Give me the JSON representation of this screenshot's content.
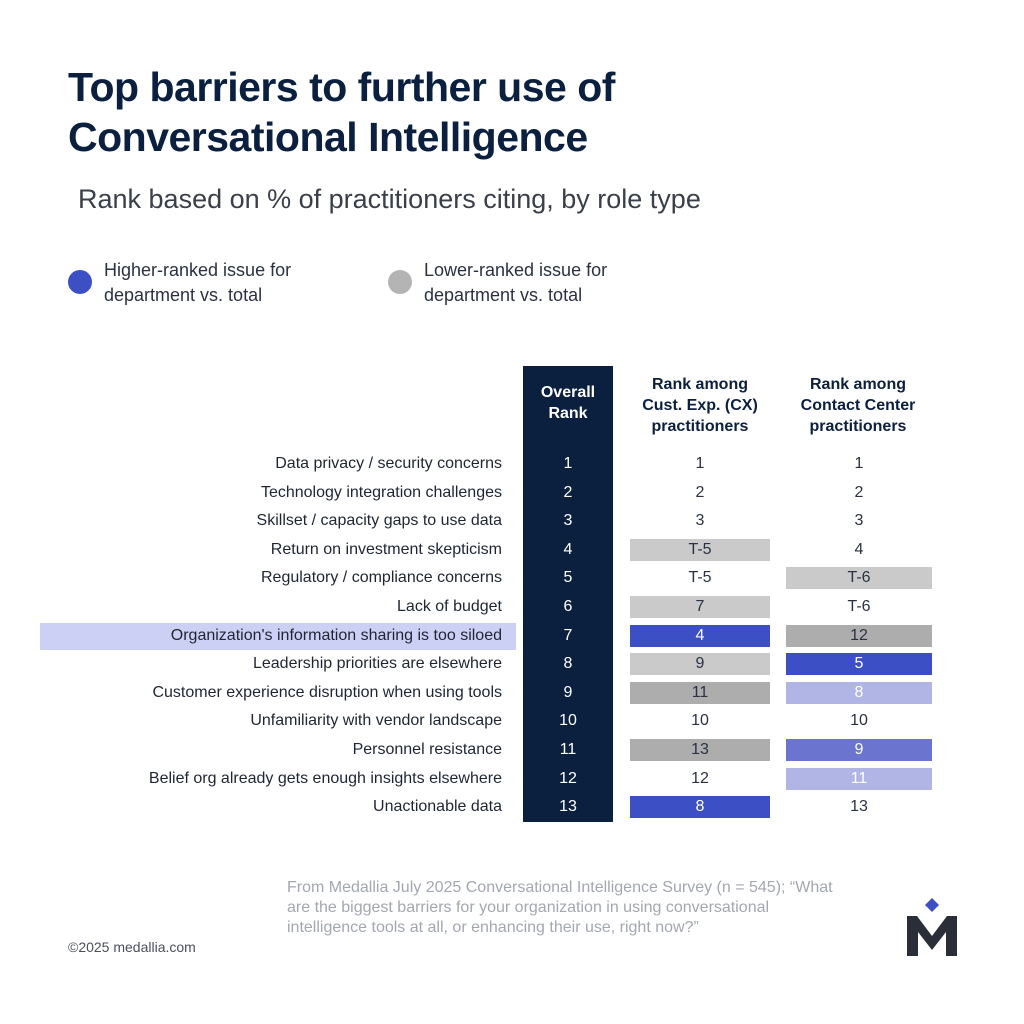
{
  "header": {
    "title_line1": "Top barriers to further use of",
    "title_line2": "Conversational Intelligence",
    "subtitle": "Rank based on % of practitioners citing, by role type"
  },
  "legend": [
    {
      "label": "Higher-ranked issue for department vs. total",
      "color": "#3d4fc4"
    },
    {
      "label": "Lower-ranked issue for department vs. total",
      "color": "#b4b4b4"
    }
  ],
  "colors": {
    "navy": "#0b1f3f",
    "highlight_band": "#cdd0f5",
    "higher": "#3d4fc4",
    "higher_mid": "#6b74cf",
    "higher_light": "#b0b5e6",
    "lower_light": "#cacaca",
    "lower": "#adadad",
    "none": "transparent"
  },
  "chart_data": {
    "type": "table",
    "columns": [
      "Overall Rank",
      "Rank among Cust. Exp. (CX) practitioners",
      "Rank among Contact Center practitioners"
    ],
    "highlighted_row": "Organization's information sharing is too siloed",
    "rows": [
      {
        "label": "Data privacy / security concerns",
        "overall": "1",
        "cx": "1",
        "cx_shade": "none",
        "cc": "1",
        "cc_shade": "none"
      },
      {
        "label": "Technology integration challenges",
        "overall": "2",
        "cx": "2",
        "cx_shade": "none",
        "cc": "2",
        "cc_shade": "none"
      },
      {
        "label": "Skillset / capacity gaps to use data",
        "overall": "3",
        "cx": "3",
        "cx_shade": "none",
        "cc": "3",
        "cc_shade": "none"
      },
      {
        "label": "Return on investment skepticism",
        "overall": "4",
        "cx": "T-5",
        "cx_shade": "lower_light",
        "cc": "4",
        "cc_shade": "none"
      },
      {
        "label": "Regulatory / compliance concerns",
        "overall": "5",
        "cx": "T-5",
        "cx_shade": "none",
        "cc": "T-6",
        "cc_shade": "lower_light"
      },
      {
        "label": "Lack of budget",
        "overall": "6",
        "cx": "7",
        "cx_shade": "lower_light",
        "cc": "T-6",
        "cc_shade": "none"
      },
      {
        "label": "Organization's information sharing is too siloed",
        "overall": "7",
        "cx": "4",
        "cx_shade": "higher",
        "cc": "12",
        "cc_shade": "lower"
      },
      {
        "label": "Leadership priorities are elsewhere",
        "overall": "8",
        "cx": "9",
        "cx_shade": "lower_light",
        "cc": "5",
        "cc_shade": "higher"
      },
      {
        "label": "Customer experience disruption when using tools",
        "overall": "9",
        "cx": "11",
        "cx_shade": "lower",
        "cc": "8",
        "cc_shade": "higher_light"
      },
      {
        "label": "Unfamiliarity with vendor landscape",
        "overall": "10",
        "cx": "10",
        "cx_shade": "none",
        "cc": "10",
        "cc_shade": "none"
      },
      {
        "label": "Personnel resistance",
        "overall": "11",
        "cx": "13",
        "cx_shade": "lower",
        "cc": "9",
        "cc_shade": "higher_mid"
      },
      {
        "label": "Belief org already gets enough insights elsewhere",
        "overall": "12",
        "cx": "12",
        "cx_shade": "none",
        "cc": "11",
        "cc_shade": "higher_light"
      },
      {
        "label": "Unactionable data",
        "overall": "13",
        "cx": "8",
        "cx_shade": "higher",
        "cc": "13",
        "cc_shade": "none"
      }
    ]
  },
  "table_headers": {
    "overall_l1": "Overall",
    "overall_l2": "Rank",
    "cx_l1": "Rank among",
    "cx_l2": "Cust. Exp. (CX)",
    "cx_l3": "practitioners",
    "cc_l1": "Rank among",
    "cc_l2": "Contact Center",
    "cc_l3": "practitioners"
  },
  "footer": {
    "source": "From Medallia July 2025 Conversational Intelligence Survey (n = 545); “What are the biggest barriers for your organization in using conversational intelligence tools at all, or enhancing their use, right now?”",
    "copyright": "©2025 medallia.com",
    "logo": "M"
  }
}
